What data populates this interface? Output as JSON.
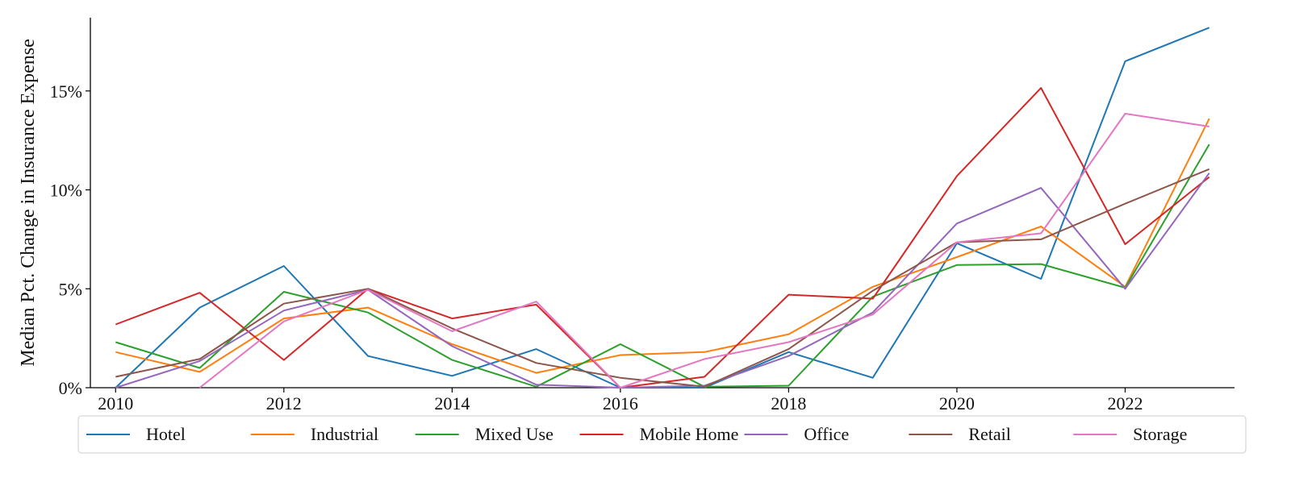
{
  "chart_data": {
    "type": "line",
    "title": "",
    "xlabel": "",
    "ylabel": "Median Pct. Change in Insurance Expense",
    "x": [
      2010,
      2011,
      2012,
      2013,
      2014,
      2015,
      2016,
      2017,
      2018,
      2019,
      2020,
      2021,
      2022,
      2023
    ],
    "xlim": [
      2009.7,
      2023.3
    ],
    "ylim": [
      0,
      18.7
    ],
    "x_ticks": [
      2010,
      2012,
      2014,
      2016,
      2018,
      2020,
      2022
    ],
    "x_tick_labels": [
      "2010",
      "2012",
      "2014",
      "2016",
      "2018",
      "2020",
      "2022"
    ],
    "y_ticks": [
      0,
      5,
      10,
      15
    ],
    "y_tick_labels": [
      "0%",
      "5%",
      "10%",
      "15%"
    ],
    "grid": false,
    "legend_position": "bottom",
    "series": [
      {
        "name": "Hotel",
        "color": "#1f77b4",
        "values": [
          0.0,
          4.05,
          6.15,
          1.6,
          0.6,
          1.95,
          0.0,
          0.0,
          1.8,
          0.5,
          7.3,
          5.5,
          16.5,
          18.2
        ]
      },
      {
        "name": "Industrial",
        "color": "#ff7f0e",
        "values": [
          1.8,
          0.8,
          3.5,
          4.05,
          2.2,
          0.75,
          1.65,
          1.8,
          2.7,
          5.1,
          6.6,
          8.15,
          5.1,
          13.6
        ]
      },
      {
        "name": "Mixed Use",
        "color": "#2ca02c",
        "values": [
          2.3,
          1.0,
          4.85,
          3.8,
          1.4,
          0.05,
          2.2,
          0.05,
          0.1,
          4.6,
          6.2,
          6.25,
          5.05,
          12.3
        ]
      },
      {
        "name": "Mobile Home",
        "color": "#d62728",
        "values": [
          3.2,
          4.8,
          1.4,
          5.0,
          3.5,
          4.2,
          0.0,
          0.55,
          4.7,
          4.5,
          10.7,
          15.15,
          7.25,
          10.65
        ]
      },
      {
        "name": "Office",
        "color": "#9467bd",
        "values": [
          0.0,
          1.35,
          3.9,
          4.95,
          2.1,
          0.15,
          0.0,
          0.1,
          1.6,
          3.8,
          8.3,
          10.1,
          5.0,
          10.85
        ]
      },
      {
        "name": "Retail",
        "color": "#8c564b",
        "values": [
          0.55,
          1.45,
          4.25,
          5.0,
          3.0,
          1.25,
          0.5,
          0.05,
          1.95,
          4.9,
          7.35,
          7.5,
          9.3,
          11.05
        ]
      },
      {
        "name": "Storage",
        "color": "#e377c2",
        "values": [
          null,
          0.0,
          3.35,
          4.95,
          2.85,
          4.35,
          0.0,
          1.45,
          2.3,
          3.7,
          7.35,
          7.8,
          13.85,
          13.2
        ]
      }
    ]
  }
}
